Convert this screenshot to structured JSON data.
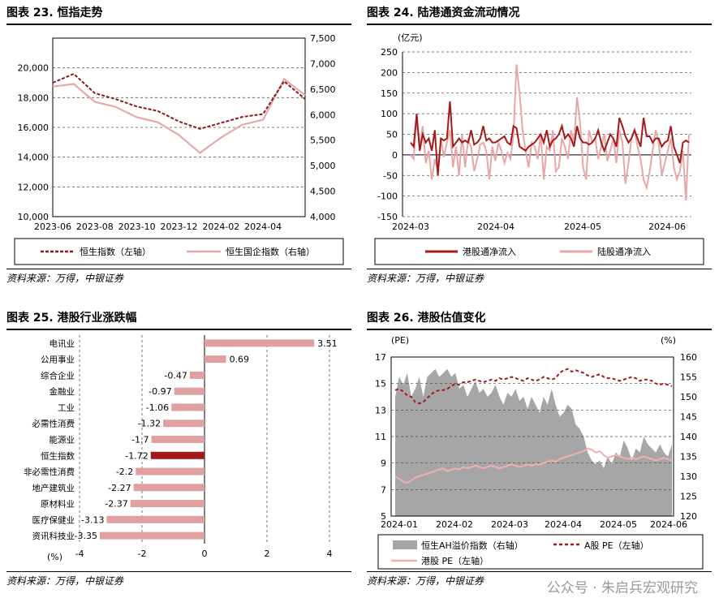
{
  "panels": {
    "p23": {
      "title": "图表 23.  恒指走势",
      "source": "资料来源：万得，中银证券"
    },
    "p24": {
      "title": "图表 24.  陆港通资金流动情况",
      "source": "资料来源：万得，中银证券"
    },
    "p25": {
      "title": "图表 25.  港股行业涨跌幅",
      "source": "资料来源：万得，中银证券"
    },
    "p26": {
      "title": "图表 26.  港股估值变化",
      "source": "资料来源：万得，中银证券"
    }
  },
  "watermark": "公众号 · 朱启兵宏观研究",
  "chart_data": [
    {
      "id": "p23",
      "type": "line",
      "x_ticks": [
        "2023-06",
        "2023-08",
        "2023-10",
        "2023-12",
        "2024-02",
        "2024-04"
      ],
      "y_left": {
        "ylim": [
          10000,
          22000
        ],
        "ticks": [
          "10,000",
          "12,000",
          "14,000",
          "16,000",
          "18,000",
          "20,000"
        ]
      },
      "y_right": {
        "ylim": [
          4000,
          7500
        ],
        "ticks": [
          "4,000",
          "4,500",
          "5,000",
          "5,500",
          "6,000",
          "6,500",
          "7,000",
          "7,500"
        ]
      },
      "months": [
        "2023-06",
        "2023-07",
        "2023-08",
        "2023-09",
        "2023-10",
        "2023-11",
        "2023-12",
        "2024-01",
        "2024-02",
        "2024-03",
        "2024-04",
        "2024-05",
        "2024-06"
      ],
      "series": [
        {
          "name": "恒生指数（左轴）",
          "axis": "left",
          "style": "dashed",
          "color": "#8b1a1a",
          "values": [
            19000,
            19600,
            18300,
            17900,
            17400,
            17100,
            16400,
            15900,
            16300,
            16700,
            16900,
            19100,
            17900
          ]
        },
        {
          "name": "恒生国企指数（右轴）",
          "axis": "right",
          "style": "solid",
          "color": "#e8a7a7",
          "values": [
            6550,
            6600,
            6250,
            6150,
            5950,
            5850,
            5600,
            5250,
            5550,
            5800,
            5900,
            6700,
            6380
          ]
        }
      ],
      "grid": "horizontal-dashed",
      "legend": "bottom"
    },
    {
      "id": "p24",
      "type": "line",
      "unit": "(亿元)",
      "x_ticks": [
        "2024-03",
        "2024-04",
        "2024-05",
        "2024-06"
      ],
      "ylim": [
        -150,
        250
      ],
      "y_ticks": [
        "-150",
        "-100",
        "-50",
        "0",
        "50",
        "100",
        "150",
        "200",
        "250"
      ],
      "series": [
        {
          "name": "港股通净流入",
          "color": "#a31a1a",
          "values": [
            30,
            20,
            100,
            10,
            50,
            30,
            40,
            10,
            60,
            -50,
            40,
            35,
            40,
            130,
            20,
            30,
            40,
            30,
            35,
            30,
            60,
            25,
            30,
            40,
            70,
            35,
            40,
            30,
            30,
            35,
            40,
            45,
            30,
            25,
            70,
            65,
            20,
            15,
            10,
            20,
            25,
            30,
            40,
            50,
            30,
            60,
            20,
            35,
            40,
            50,
            70,
            40,
            50,
            40,
            20,
            70,
            40,
            30,
            30,
            25,
            30,
            40,
            60,
            30,
            10,
            30,
            50,
            40,
            20,
            90,
            70,
            45,
            30,
            40,
            60,
            40,
            20,
            90,
            45,
            45,
            30,
            40,
            40,
            20,
            30,
            35,
            70,
            20,
            0,
            -20,
            30,
            35,
            30
          ]
        },
        {
          "name": "陆股通净流入",
          "color": "#e8a7a7",
          "values": [
            0,
            -10,
            90,
            20,
            70,
            -20,
            10,
            -60,
            -10,
            -40,
            40,
            -5,
            30,
            60,
            -30,
            20,
            -50,
            50,
            -30,
            35,
            20,
            -40,
            -10,
            25,
            30,
            10,
            -60,
            20,
            -15,
            30,
            10,
            -20,
            5,
            -10,
            50,
            220,
            150,
            60,
            10,
            -30,
            30,
            20,
            -10,
            50,
            -60,
            20,
            10,
            60,
            -40,
            -30,
            40,
            20,
            -10,
            60,
            30,
            140,
            80,
            -30,
            -60,
            60,
            30,
            40,
            -10,
            20,
            50,
            -15,
            10,
            40,
            -20,
            60,
            30,
            -70,
            -20,
            40,
            60,
            20,
            -10,
            -60,
            -80,
            -40,
            10,
            60,
            30,
            -50,
            -20,
            10,
            40,
            -30,
            -60,
            -40,
            10,
            -110,
            50
          ]
        }
      ],
      "grid": "horizontal-dashed",
      "legend": "bottom"
    },
    {
      "id": "p25",
      "type": "bar",
      "orientation": "horizontal",
      "unit": "(%)",
      "categories": [
        "电讯业",
        "公用事业",
        "综合企业",
        "金融业",
        "工业",
        "必需性消费",
        "能源业",
        "恒生指数",
        "非必需性消费",
        "地产建筑业",
        "原材料业",
        "医疗保健业",
        "资讯科技业"
      ],
      "values": [
        3.51,
        0.69,
        -0.47,
        -0.97,
        -1.06,
        -1.32,
        -1.7,
        -1.72,
        -2.2,
        -2.27,
        -2.37,
        -3.13,
        -3.35
      ],
      "value_labels": [
        "3.51",
        "0.69",
        "-0.47",
        "-0.97",
        "-1.06",
        "-1.32",
        "-1.7",
        "-1.72",
        "-2.2",
        "-2.27",
        "-2.37",
        "-3.13",
        "-3.35"
      ],
      "highlight": "恒生指数",
      "highlight_color": "#a31a1a",
      "bar_color": "#e0a0a0",
      "xlim": [
        -4,
        4
      ],
      "x_ticks": [
        "-4",
        "-2",
        "0",
        "2",
        "4"
      ]
    },
    {
      "id": "p26",
      "type": "area",
      "left_unit": "(PE)",
      "right_unit": "(%)",
      "x_ticks": [
        "2024-01",
        "2024-02",
        "2024-03",
        "2024-04",
        "2024-05",
        "2024-06"
      ],
      "y_left": {
        "ylim": [
          5,
          17
        ],
        "ticks": [
          "5",
          "7",
          "9",
          "11",
          "13",
          "15",
          "17"
        ]
      },
      "y_right": {
        "ylim": [
          120,
          160
        ],
        "ticks": [
          "120",
          "125",
          "130",
          "135",
          "140",
          "145",
          "150",
          "155",
          "160"
        ]
      },
      "series": [
        {
          "name": "恒生AH溢价指数（右轴）",
          "axis": "right",
          "kind": "area",
          "color": "#a6a6a6",
          "values": [
            150,
            155,
            153,
            156,
            150,
            152,
            155,
            150,
            155,
            156,
            157,
            155,
            156,
            157,
            155,
            156,
            152,
            153,
            150,
            152,
            154,
            151,
            152,
            150,
            151,
            153,
            150,
            148,
            151,
            150,
            152,
            149,
            150,
            147,
            150,
            148,
            146,
            150,
            148,
            152,
            148,
            145,
            146,
            148,
            147,
            143,
            142,
            140,
            136,
            134,
            133,
            134,
            132,
            135,
            133,
            136,
            135,
            139,
            137,
            134,
            137,
            136,
            140,
            138,
            137,
            136,
            138,
            136,
            135,
            138
          ]
        },
        {
          "name": "A股  PE（左轴）",
          "axis": "left",
          "kind": "dashed",
          "color": "#a31a1a",
          "values": [
            14.5,
            14.6,
            14.4,
            14.1,
            14.0,
            13.6,
            13.5,
            13.6,
            13.9,
            14.2,
            14.4,
            14.5,
            14.5,
            14.6,
            14.8,
            15.0,
            14.9,
            15.1,
            15.1,
            15.2,
            15.3,
            15.2,
            15.1,
            15.2,
            15.3,
            15.2,
            15.4,
            15.3,
            15.4,
            15.5,
            15.4,
            15.3,
            15.2,
            15.4,
            15.3,
            15.2,
            15.3,
            15.5,
            15.4,
            15.3,
            15.4,
            15.8,
            16.0,
            16.1,
            15.9,
            16.0,
            15.9,
            15.8,
            15.6,
            15.5,
            15.6,
            15.7,
            15.5,
            15.4,
            15.4,
            15.3,
            15.2,
            15.3,
            15.4,
            15.5,
            15.4,
            15.2,
            15.3,
            15.3,
            15.2,
            15.0,
            14.9,
            15.0,
            14.9,
            14.8
          ]
        },
        {
          "name": "港股  PE（左轴）",
          "axis": "left",
          "kind": "solid",
          "color": "#f0b0b0",
          "values": [
            8.0,
            7.8,
            7.6,
            7.5,
            7.7,
            7.9,
            8.0,
            8.1,
            8.2,
            8.3,
            8.4,
            8.5,
            8.6,
            8.4,
            8.5,
            8.6,
            8.5,
            8.7,
            8.6,
            8.7,
            8.8,
            8.7,
            8.6,
            8.7,
            8.8,
            8.7,
            8.6,
            8.7,
            8.8,
            8.9,
            8.8,
            8.7,
            8.8,
            8.9,
            8.8,
            8.9,
            8.9,
            9.0,
            9.1,
            9.2,
            9.1,
            9.3,
            9.4,
            9.5,
            9.6,
            9.7,
            9.8,
            9.9,
            10.1,
            10.0,
            9.8,
            9.9,
            9.6,
            9.4,
            9.5,
            9.6,
            9.5,
            9.4,
            9.3,
            9.4,
            9.3,
            9.4,
            9.5,
            9.4,
            9.3,
            9.2,
            9.3,
            9.4,
            9.3,
            9.2
          ]
        }
      ],
      "grid": "horizontal-dashed",
      "legend": "bottom"
    }
  ]
}
